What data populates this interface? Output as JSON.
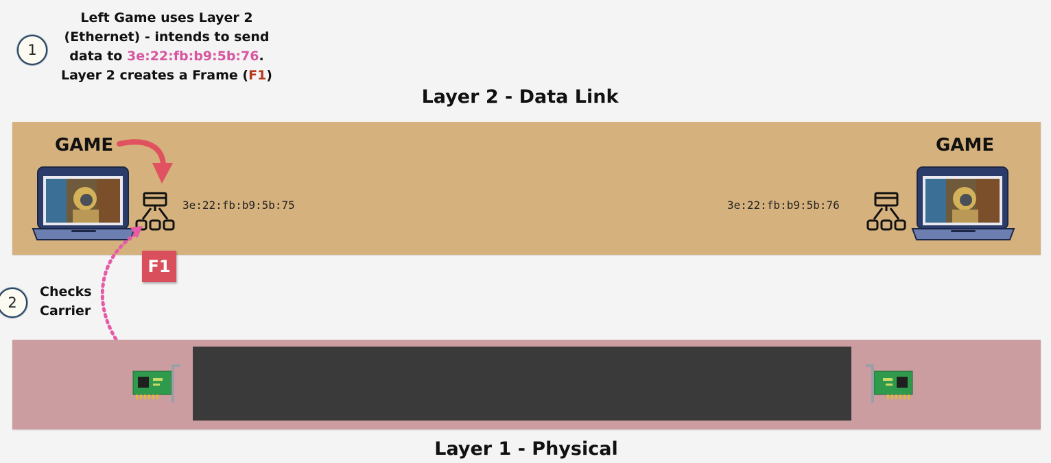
{
  "step1": {
    "number": "1",
    "line1": "Left Game uses Layer 2",
    "line2": "(Ethernet) - intends to send",
    "line3_prefix": "data to ",
    "line3_mac": "3e:22:fb:b9:5b:76",
    "line3_suffix": ".",
    "line4_prefix": "Layer 2 creates a Frame (",
    "line4_frame": "F1",
    "line4_suffix": ")"
  },
  "step2": {
    "number": "2",
    "line1": "Checks",
    "line2": "Carrier"
  },
  "layer2": {
    "title": "Layer 2 - Data Link",
    "left_game_label": "GAME",
    "right_game_label": "GAME",
    "left_mac": "3e:22:fb:b9:5b:75",
    "right_mac": "3e:22:fb:b9:5b:76",
    "frame_label": "F1"
  },
  "layer1": {
    "title": "Layer 1 - Physical"
  },
  "colors": {
    "layer2_band": "#d5b17d",
    "layer1_band": "#cc9da0",
    "mac_highlight": "#d6569f",
    "frame_red": "#d94f5c",
    "arrow_red": "#e0525f",
    "arrow_pink": "#e65aa6",
    "cable": "#3a3a3a"
  },
  "icons": [
    "laptop-icon",
    "network-hierarchy-icon",
    "network-card-icon"
  ]
}
